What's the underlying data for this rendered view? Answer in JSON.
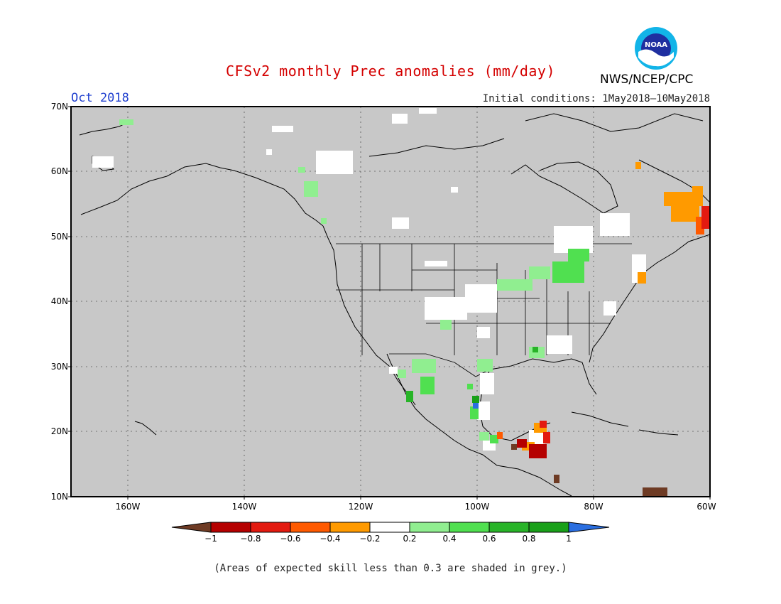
{
  "title": "CFSv2 monthly Prec anomalies (mm/day)",
  "agency": "NWS/NCEP/CPC",
  "logo_text": "NOAA",
  "month": "Oct 2018",
  "initial_conditions": "Initial conditions: 1May2018—10May2018",
  "lat_labels": [
    "70N",
    "60N",
    "50N",
    "40N",
    "30N",
    "20N",
    "10N"
  ],
  "lon_labels": [
    "160W",
    "140W",
    "120W",
    "100W",
    "80W",
    "60W"
  ],
  "colorbar": {
    "labels": [
      "−1",
      "−0.8",
      "−0.6",
      "−0.4",
      "−0.2",
      "0.2",
      "0.4",
      "0.6",
      "0.8",
      "1"
    ],
    "colors": {
      "lt_-1": "#6e3b24",
      "-1_-0.8": "#b50000",
      "-0.8_-0.6": "#e31a10",
      "-0.6_-0.4": "#ff5a00",
      "-0.4_-0.2": "#ff9a00",
      "-0.2_0.2": "#ffffff",
      "0.2_0.4": "#90ee90",
      "0.4_0.6": "#50e050",
      "0.6_0.8": "#28b428",
      "0.8_1": "#19a019",
      "gt_1": "#2a6ee0"
    }
  },
  "map_background": "#c8c8c8",
  "note": "(Areas of expected skill less than 0.3 are shaded in grey.)"
}
